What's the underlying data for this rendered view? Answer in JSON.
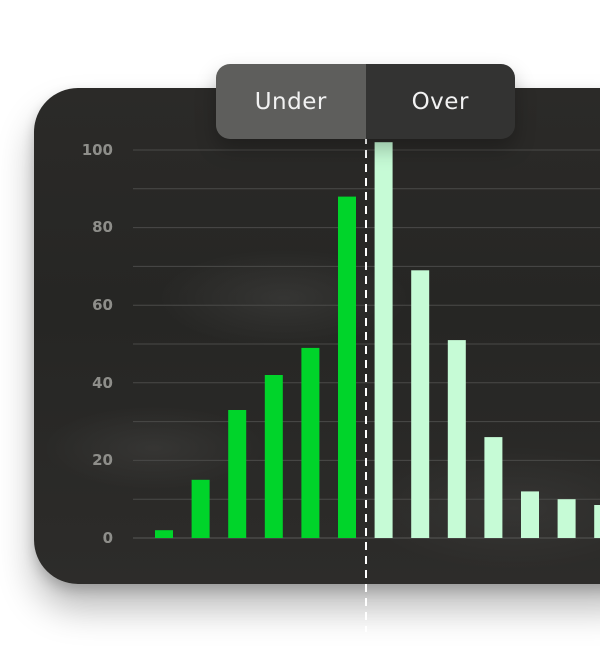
{
  "toggle": {
    "under_label": "Under",
    "over_label": "Over",
    "selected": "Under"
  },
  "colors": {
    "under_bar": "#00d42a",
    "over_bar": "#c6fbd6",
    "grid": "#4a4a48",
    "divider": "#ffffff"
  },
  "chart_data": {
    "type": "bar",
    "yticks": [
      "0",
      "20",
      "40",
      "60",
      "80",
      "100"
    ],
    "ylim": [
      0,
      100
    ],
    "grid": true,
    "divider_after_index": 5,
    "series": [
      {
        "group": "Under",
        "values": [
          2,
          15,
          33,
          42,
          49,
          88
        ]
      },
      {
        "group": "Over",
        "values": [
          102,
          69,
          51,
          26,
          12,
          10,
          8.5
        ]
      }
    ]
  }
}
